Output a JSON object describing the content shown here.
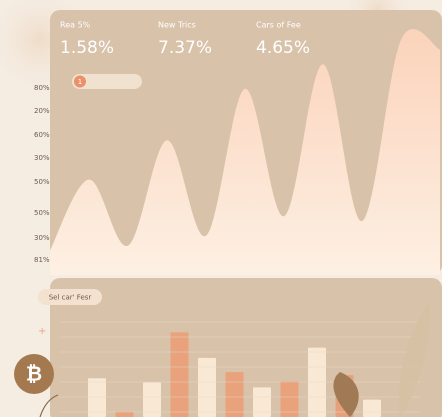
{
  "stats": [
    {
      "label": "Rea 5%",
      "value": "1.58%"
    },
    {
      "label": "New Trics",
      "value": "7.37%"
    },
    {
      "label": "Cars of Fee",
      "value": "4.65%"
    }
  ],
  "badge": "1",
  "icon": "₿",
  "chart_data": [
    {
      "type": "area",
      "axis_labels": [
        "80%",
        "20%",
        "60%",
        "30%",
        "50%",
        "50%",
        "30%",
        "81%"
      ],
      "values": [
        10,
        39,
        12,
        55,
        16,
        76,
        24,
        86,
        22,
        96,
        92
      ],
      "ylim": [
        0,
        100
      ],
      "color": "#fbd6bf"
    },
    {
      "type": "bar",
      "title": "Sel car' Fesr",
      "values": [
        38,
        5,
        34,
        83,
        58,
        44,
        29,
        35,
        68,
        41,
        17
      ],
      "colors": [
        "#f8e8d4",
        "#e9a27c",
        "#f8e8d4",
        "#e9a27c",
        "#f8e8d4",
        "#e9a27c",
        "#f8e8d4",
        "#e9a27c",
        "#f8e8d4",
        "#e7a07a",
        "#f8e8d4"
      ],
      "ylim": [
        0,
        100
      ]
    }
  ]
}
